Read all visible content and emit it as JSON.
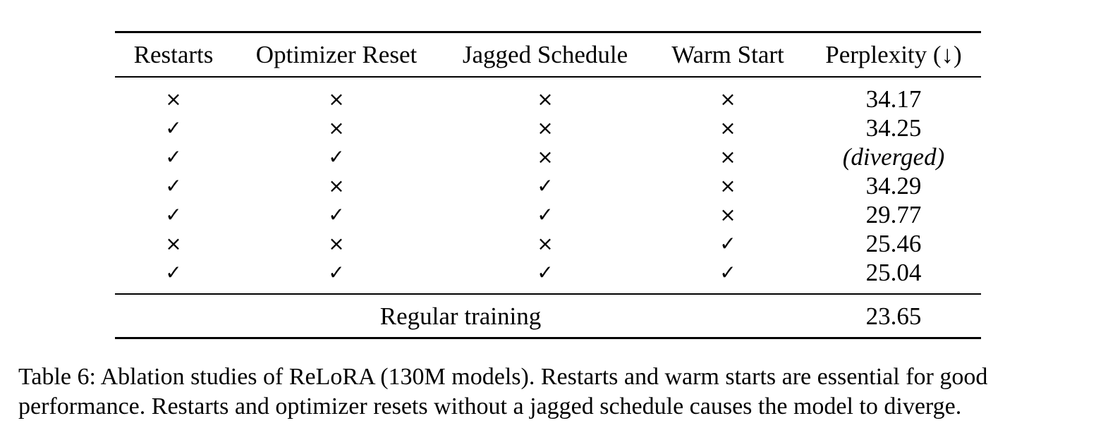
{
  "table": {
    "headers": [
      "Restarts",
      "Optimizer Reset",
      "Jagged Schedule",
      "Warm Start",
      "Perplexity (↓)"
    ],
    "rows": [
      {
        "restarts": "×",
        "optimizer_reset": "×",
        "jagged_schedule": "×",
        "warm_start": "×",
        "perplexity": "34.17"
      },
      {
        "restarts": "✓",
        "optimizer_reset": "×",
        "jagged_schedule": "×",
        "warm_start": "×",
        "perplexity": "34.25"
      },
      {
        "restarts": "✓",
        "optimizer_reset": "✓",
        "jagged_schedule": "×",
        "warm_start": "×",
        "perplexity": "(diverged)"
      },
      {
        "restarts": "✓",
        "optimizer_reset": "×",
        "jagged_schedule": "✓",
        "warm_start": "×",
        "perplexity": "34.29"
      },
      {
        "restarts": "✓",
        "optimizer_reset": "✓",
        "jagged_schedule": "✓",
        "warm_start": "×",
        "perplexity": "29.77"
      },
      {
        "restarts": "×",
        "optimizer_reset": "×",
        "jagged_schedule": "×",
        "warm_start": "✓",
        "perplexity": "25.46"
      },
      {
        "restarts": "✓",
        "optimizer_reset": "✓",
        "jagged_schedule": "✓",
        "warm_start": "✓",
        "perplexity": "25.04"
      }
    ],
    "footer": {
      "label": "Regular training",
      "perplexity": "23.65"
    }
  },
  "caption": "Table 6: Ablation studies of ReLoRA (130M models). Restarts and warm starts are essential for good performance. Restarts and optimizer resets without a jagged schedule causes the model to diverge."
}
